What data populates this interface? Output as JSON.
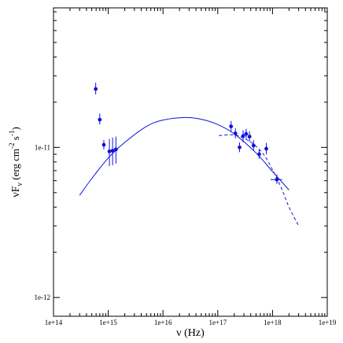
{
  "chart_data": {
    "type": "scatter",
    "title": "",
    "xlabel": "ν (Hz)",
    "ylabel": "νF_ν (erg cm^-2 s^-1)",
    "xscale": "log",
    "yscale": "log",
    "xlim": [
      100000000000000.0,
      1e+19
    ],
    "ylim": [
      7.5e-13,
      8.5e-11
    ],
    "grid": false,
    "legend": "none",
    "x_ticks": [
      {
        "value": 100000000000000.0,
        "label": "1e+14"
      },
      {
        "value": 1000000000000000.0,
        "label": "1e+15"
      },
      {
        "value": 1e+16,
        "label": "1e+16"
      },
      {
        "value": 1e+17,
        "label": "1e+17"
      },
      {
        "value": 1e+18,
        "label": "1e+18"
      },
      {
        "value": 1e+19,
        "label": "1e+19"
      }
    ],
    "y_ticks": [
      {
        "value": 1e-12,
        "label": "1e-12"
      },
      {
        "value": 1e-11,
        "label": "1e-11"
      }
    ],
    "y_minor_ticks": [
      2e-12,
      3e-12,
      4e-12,
      5e-12,
      6e-12,
      7e-12,
      8e-12,
      9e-12,
      2e-11,
      3e-11,
      4e-11,
      5e-11,
      6e-11,
      7e-11,
      8e-11
    ],
    "data_color": "#1010e0",
    "points": [
      {
        "x": 590000000000000.0,
        "y": 2.45e-11,
        "ylo": 2.25e-11,
        "yhi": 2.7e-11
      },
      {
        "x": 700000000000000.0,
        "y": 1.53e-11,
        "ylo": 1.42e-11,
        "yhi": 1.68e-11
      },
      {
        "x": 830000000000000.0,
        "y": 1.04e-11,
        "ylo": 9.7e-12,
        "yhi": 1.12e-11
      },
      {
        "x": 1050000000000000.0,
        "y": 9.4e-12,
        "ylo": 7.5e-12,
        "yhi": 1.14e-11
      },
      {
        "x": 1200000000000000.0,
        "y": 9.5e-12,
        "ylo": 7.6e-12,
        "yhi": 1.16e-11
      },
      {
        "x": 1380000000000000.0,
        "y": 9.7e-12,
        "ylo": 7.8e-12,
        "yhi": 1.18e-11
      },
      {
        "x": 1.75e+17,
        "y": 1.38e-11,
        "ylo": 1.28e-11,
        "yhi": 1.5e-11
      },
      {
        "x": 2.1e+17,
        "y": 1.24e-11,
        "ylo": 1.15e-11,
        "yhi": 1.34e-11
      },
      {
        "x": 2.5e+17,
        "y": 1e-11,
        "ylo": 9.3e-12,
        "yhi": 1.08e-11
      },
      {
        "x": 2.9e+17,
        "y": 1.19e-11,
        "ylo": 1.08e-11,
        "yhi": 1.3e-11
      },
      {
        "x": 3.3e+17,
        "y": 1.23e-11,
        "ylo": 1.14e-11,
        "yhi": 1.33e-11
      },
      {
        "x": 3.8e+17,
        "y": 1.18e-11,
        "ylo": 1.09e-11,
        "yhi": 1.28e-11
      },
      {
        "x": 4.5e+17,
        "y": 1.03e-11,
        "ylo": 9.5e-12,
        "yhi": 1.12e-11
      },
      {
        "x": 5.7e+17,
        "y": 9e-12,
        "ylo": 8.4e-12,
        "yhi": 9.7e-12
      },
      {
        "x": 7.7e+17,
        "y": 9.8e-12,
        "ylo": 9e-12,
        "yhi": 1.07e-11
      },
      {
        "x": 1.2e+18,
        "y": 6.1e-12,
        "ylo": 5.7e-12,
        "yhi": 6.6e-12,
        "xlo": 9.2e+17,
        "xhi": 1.5e+18
      }
    ],
    "series": [
      {
        "style": "solid",
        "x": [
          300000000000000.0,
          500000000000000.0,
          1000000000000000.0,
          2000000000000000.0,
          5000000000000000.0,
          1e+16,
          2.5e+16,
          5e+16,
          1e+17,
          2e+17,
          5e+17,
          1e+18,
          2e+18
        ],
        "y": [
          4.8e-12,
          6.2e-12,
          8.5e-12,
          1.08e-11,
          1.38e-11,
          1.52e-11,
          1.58e-11,
          1.54e-11,
          1.42e-11,
          1.23e-11,
          9.2e-12,
          6.9e-12,
          5.2e-12
        ]
      },
      {
        "style": "dashed",
        "x": [
          1.05e+17,
          2e+17,
          3e+17,
          4.5e+17,
          7e+17,
          1e+18,
          1.5e+18,
          2e+18,
          3e+18
        ],
        "y": [
          1.2e-11,
          1.21e-11,
          1.15e-11,
          1.05e-11,
          8.9e-12,
          7.1e-12,
          5.2e-12,
          4e-12,
          3e-12
        ]
      }
    ]
  }
}
